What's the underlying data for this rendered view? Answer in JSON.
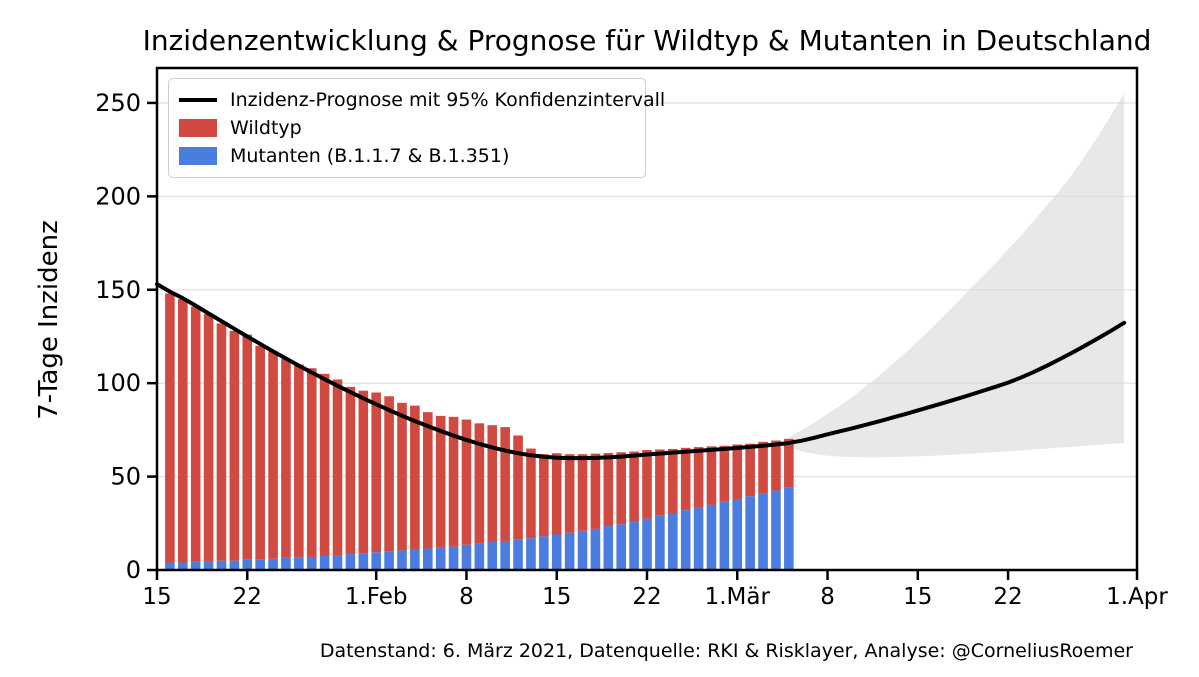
{
  "title": "Inzidenzentwicklung & Prognose für Wildtyp & Mutanten in Deutschland",
  "caption": "Datenstand: 6. März 2021, Datenquelle: RKI & Risklayer, Analyse: @CorneliusRoemer",
  "legend": {
    "prognose_label": "Inzidenz-Prognose mit 95% Konfidenzintervall",
    "wildtyp_label": "Wildtyp",
    "mutanten_label": "Mutanten (B.1.1.7 & B.1.351)"
  },
  "colors": {
    "wildtyp": "#d04a42",
    "mutanten": "#4b7ce0",
    "prognose_line": "#000000",
    "band": "#d9d9d9",
    "grid": "#e2e2e2",
    "frame": "#000000"
  },
  "chart_data": {
    "type": "bar",
    "subtype": "stacked-daily-bars-with-forecast-line-and-confidence-band",
    "title": "Inzidenzentwicklung & Prognose für Wildtyp & Mutanten in Deutschland",
    "xlabel": "",
    "ylabel": "7-Tage Inzidenz",
    "ylim": [
      0,
      268.7
    ],
    "xlim_days": [
      0,
      76
    ],
    "x_start_date": "15.Jan 2021",
    "grid": "horizontal",
    "legend_position": "upper left",
    "y_ticks": [
      0,
      50,
      100,
      150,
      200,
      250
    ],
    "x_ticks": [
      {
        "day": 0,
        "label": "15"
      },
      {
        "day": 7,
        "label": "22"
      },
      {
        "day": 17,
        "label": "1.Feb"
      },
      {
        "day": 24,
        "label": "8"
      },
      {
        "day": 31,
        "label": "15"
      },
      {
        "day": 38,
        "label": "22"
      },
      {
        "day": 45,
        "label": "1.Mär"
      },
      {
        "day": 52,
        "label": "8"
      },
      {
        "day": 59,
        "label": "15"
      },
      {
        "day": 66,
        "label": "22"
      },
      {
        "day": 76,
        "label": "1.Apr"
      }
    ],
    "bars": {
      "start_day": 1,
      "dates": [
        "16.Jan",
        "17.Jan",
        "18.Jan",
        "19.Jan",
        "20.Jan",
        "21.Jan",
        "22.Jan",
        "23.Jan",
        "24.Jan",
        "25.Jan",
        "26.Jan",
        "27.Jan",
        "28.Jan",
        "29.Jan",
        "30.Jan",
        "31.Jan",
        "1.Feb",
        "2.Feb",
        "3.Feb",
        "4.Feb",
        "5.Feb",
        "6.Feb",
        "7.Feb",
        "8.Feb",
        "9.Feb",
        "10.Feb",
        "11.Feb",
        "12.Feb",
        "13.Feb",
        "14.Feb",
        "15.Feb",
        "16.Feb",
        "17.Feb",
        "18.Feb",
        "19.Feb",
        "20.Feb",
        "21.Feb",
        "22.Feb",
        "23.Feb",
        "24.Feb",
        "25.Feb",
        "26.Feb",
        "27.Feb",
        "28.Feb",
        "1.Mär",
        "2.Mär",
        "3.Mär",
        "4.Mär",
        "5.Mär"
      ],
      "series": [
        {
          "name": "Mutanten (B.1.1.7 & B.1.351)",
          "color_key": "mutanten",
          "stack_order": 0,
          "values": [
            4,
            4,
            4.5,
            4.5,
            5,
            5,
            5.5,
            5.5,
            6,
            6.5,
            6.5,
            7,
            7.5,
            8,
            8.5,
            9,
            9.5,
            10,
            10.5,
            11,
            11.5,
            12,
            12.5,
            13.5,
            14,
            15,
            15.5,
            16.5,
            17,
            18,
            19,
            20,
            21,
            22,
            23.5,
            24.5,
            26,
            27.5,
            29,
            30.5,
            32,
            33.5,
            35,
            36.5,
            38,
            39.5,
            41,
            42.5,
            44
          ]
        },
        {
          "name": "Wildtyp",
          "color_key": "wildtyp",
          "stack_order": 1,
          "values": [
            144,
            141,
            136.5,
            132.5,
            127,
            123,
            120.5,
            114.5,
            111,
            106.5,
            103.5,
            101,
            97.5,
            94,
            89.5,
            87,
            85.5,
            83,
            79,
            77,
            73,
            70.5,
            69.5,
            67,
            64.5,
            62.5,
            61,
            55.5,
            48,
            44,
            43.5,
            42,
            41,
            40.3,
            39.1,
            38.5,
            37.4,
            36.7,
            35.5,
            34.3,
            33.4,
            32.3,
            31.2,
            30,
            29.2,
            28.1,
            27.6,
            26.8,
            26.2
          ]
        }
      ]
    },
    "forecast_line": {
      "name": "Inzidenz-Prognose mit 95% Konfidenzintervall",
      "start_day": 0,
      "values": [
        153,
        149,
        145.5,
        141.5,
        137.3,
        133.2,
        129.1,
        125,
        121,
        117,
        113.2,
        109.4,
        105.7,
        102.1,
        98.6,
        95.2,
        91.9,
        88.7,
        85.6,
        82.6,
        79.7,
        77,
        74.4,
        71.9,
        69.6,
        67.5,
        65.6,
        63.9,
        62.5,
        61.4,
        60.6,
        60.1,
        59.9,
        59.9,
        60,
        60.3,
        60.7,
        61.2,
        61.8,
        62.3,
        62.8,
        63.3,
        63.8,
        64.3,
        64.8,
        65.3,
        65.9,
        66.5,
        67.2,
        68,
        69.2,
        70.8,
        72.6,
        74.3,
        76,
        77.8,
        79.6,
        81.5,
        83.4,
        85.4,
        87.4,
        89.4,
        91.5,
        93.6,
        95.8,
        98,
        100.3,
        103,
        106,
        109.3,
        112.8,
        116.4,
        120.2,
        124.1,
        128.1,
        132.3
      ]
    },
    "confidence_band": {
      "level": "95%",
      "start_day": 49,
      "lower": [
        65.5,
        63.5,
        62,
        61.2,
        60.7,
        60.4,
        60.3,
        60.3,
        60.4,
        60.6,
        60.8,
        61.1,
        61.4,
        61.8,
        62.2,
        62.6,
        63,
        63.5,
        64,
        64.5,
        65,
        65.5,
        66,
        66.5,
        67,
        67.5,
        68
      ],
      "upper": [
        71,
        75,
        79,
        83.5,
        88,
        93,
        98.5,
        104,
        110,
        116,
        122.5,
        129,
        136,
        143,
        150,
        157,
        164,
        171.5,
        179,
        187,
        195,
        203,
        212,
        222,
        232.5,
        243.5,
        255
      ]
    }
  }
}
